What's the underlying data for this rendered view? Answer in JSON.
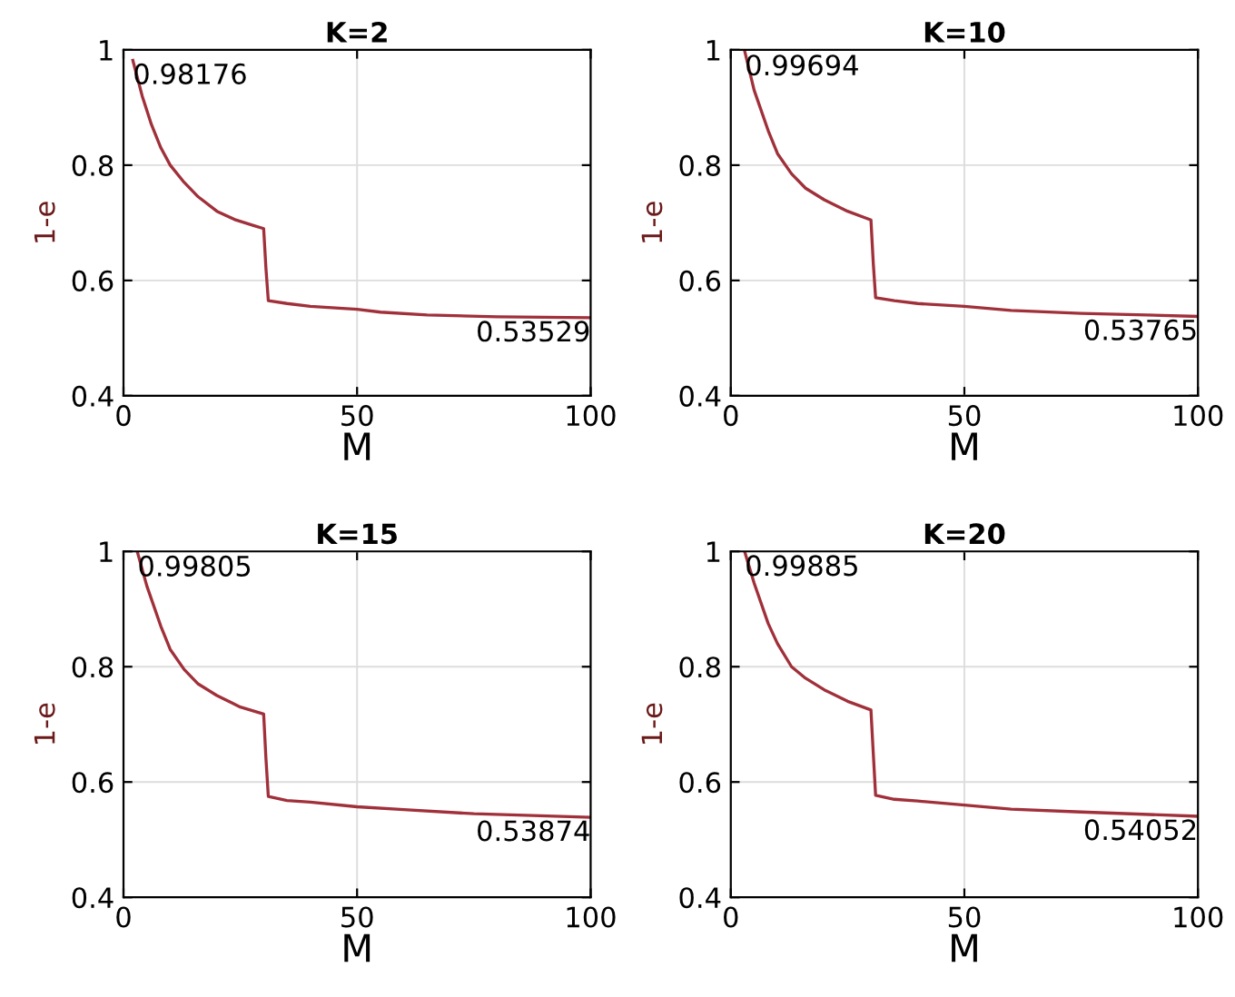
{
  "chart_data": [
    {
      "type": "line",
      "title": "K=2",
      "xlabel": "M",
      "ylabel": "1-e",
      "xlim": [
        0,
        100
      ],
      "ylim": [
        0.4,
        1
      ],
      "xticks": [
        0,
        50,
        100
      ],
      "yticks": [
        0.4,
        0.6,
        0.8,
        1
      ],
      "grid": true,
      "series": [
        {
          "color": "#a0303a",
          "x": [
            2,
            4,
            6,
            8,
            10,
            13,
            16,
            20,
            24,
            28,
            30,
            30.5,
            31,
            35,
            40,
            50,
            55,
            65,
            80,
            100
          ],
          "values": [
            0.98176,
            0.92,
            0.87,
            0.83,
            0.8,
            0.77,
            0.745,
            0.72,
            0.705,
            0.695,
            0.69,
            0.62,
            0.565,
            0.56,
            0.555,
            0.55,
            0.545,
            0.54,
            0.537,
            0.53529
          ]
        }
      ],
      "annotations": [
        {
          "text": "0.98176",
          "x": 2,
          "y": 0.98176
        },
        {
          "text": "0.53529",
          "x": 100,
          "y": 0.53529
        }
      ]
    },
    {
      "type": "line",
      "title": "K=10",
      "xlabel": "M",
      "ylabel": "1-e",
      "xlim": [
        0,
        100
      ],
      "ylim": [
        0.4,
        1
      ],
      "xticks": [
        0,
        50,
        100
      ],
      "yticks": [
        0.4,
        0.6,
        0.8,
        1
      ],
      "grid": true,
      "series": [
        {
          "color": "#a0303a",
          "x": [
            3,
            5,
            8,
            10,
            13,
            16,
            20,
            25,
            30,
            30.5,
            31,
            35,
            40,
            50,
            60,
            75,
            100
          ],
          "values": [
            0.99694,
            0.93,
            0.86,
            0.82,
            0.785,
            0.76,
            0.74,
            0.72,
            0.705,
            0.63,
            0.57,
            0.565,
            0.56,
            0.555,
            0.548,
            0.543,
            0.53765
          ]
        }
      ],
      "annotations": [
        {
          "text": "0.99694",
          "x": 3,
          "y": 0.99694
        },
        {
          "text": "0.53765",
          "x": 100,
          "y": 0.53765
        }
      ]
    },
    {
      "type": "line",
      "title": "K=15",
      "xlabel": "M",
      "ylabel": "1-e",
      "xlim": [
        0,
        100
      ],
      "ylim": [
        0.4,
        1
      ],
      "xticks": [
        0,
        50,
        100
      ],
      "yticks": [
        0.4,
        0.6,
        0.8,
        1
      ],
      "grid": true,
      "series": [
        {
          "color": "#a0303a",
          "x": [
            3,
            5,
            8,
            10,
            13,
            16,
            20,
            25,
            30,
            30.5,
            31,
            35,
            40,
            50,
            60,
            75,
            100
          ],
          "values": [
            0.99805,
            0.94,
            0.87,
            0.83,
            0.795,
            0.77,
            0.75,
            0.73,
            0.718,
            0.64,
            0.575,
            0.568,
            0.565,
            0.557,
            0.552,
            0.545,
            0.53874
          ]
        }
      ],
      "annotations": [
        {
          "text": "0.99805",
          "x": 3,
          "y": 0.99805
        },
        {
          "text": "0.53874",
          "x": 100,
          "y": 0.53874
        }
      ]
    },
    {
      "type": "line",
      "title": "K=20",
      "xlabel": "M",
      "ylabel": "1-e",
      "xlim": [
        0,
        100
      ],
      "ylim": [
        0.4,
        1
      ],
      "xticks": [
        0,
        50,
        100
      ],
      "yticks": [
        0.4,
        0.6,
        0.8,
        1
      ],
      "grid": true,
      "series": [
        {
          "color": "#a0303a",
          "x": [
            3,
            5,
            8,
            10,
            13,
            16,
            20,
            25,
            30,
            30.5,
            31,
            35,
            40,
            50,
            60,
            75,
            100
          ],
          "values": [
            0.99885,
            0.945,
            0.875,
            0.84,
            0.8,
            0.78,
            0.76,
            0.74,
            0.725,
            0.65,
            0.577,
            0.57,
            0.567,
            0.56,
            0.553,
            0.548,
            0.54052
          ]
        }
      ],
      "annotations": [
        {
          "text": "0.99885",
          "x": 3,
          "y": 0.99885
        },
        {
          "text": "0.54052",
          "x": 100,
          "y": 0.54052
        }
      ]
    }
  ]
}
